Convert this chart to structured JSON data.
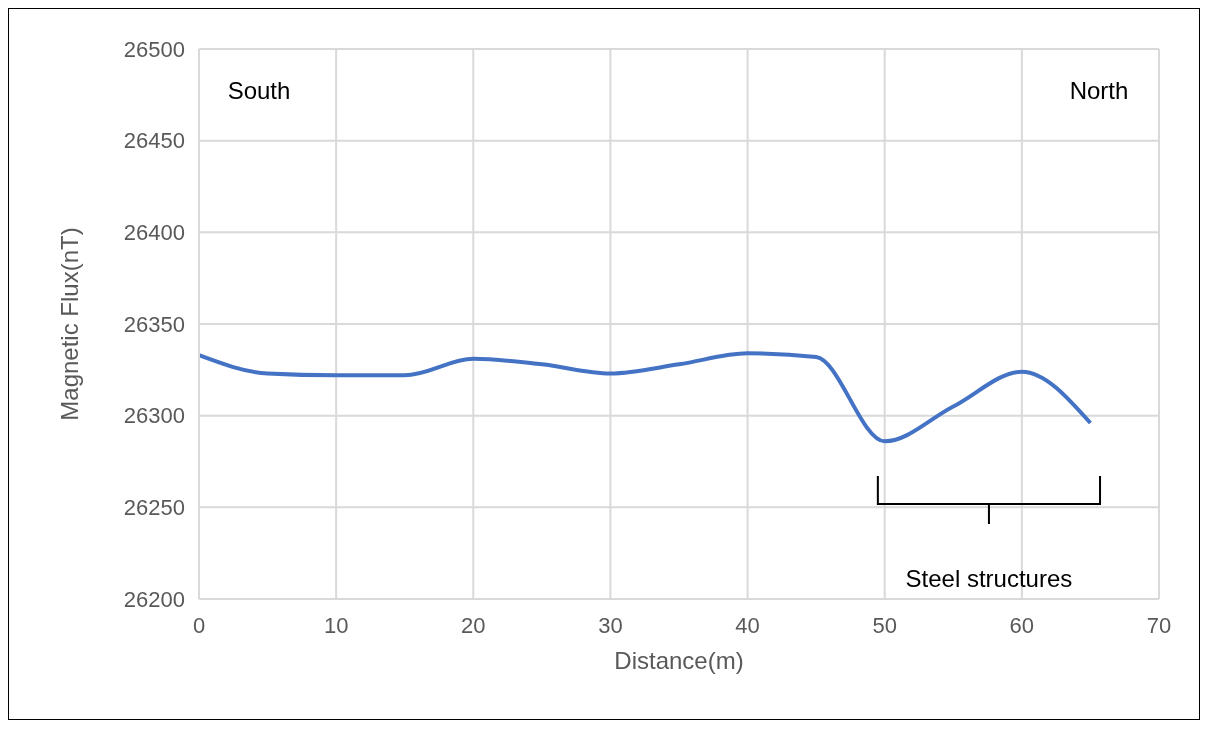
{
  "chart_data": {
    "type": "line",
    "xlabel": "Distance(m)",
    "ylabel": "Magnetic Flux(nT)",
    "x": [
      0,
      5,
      10,
      15,
      20,
      25,
      30,
      35,
      40,
      45,
      50,
      55,
      60,
      65
    ],
    "series": [
      {
        "color": "#4472c4",
        "values": [
          26333,
          26323,
          26322,
          26322,
          26331,
          26328,
          26323,
          26328,
          26334,
          26332,
          26286,
          26305,
          26324,
          26296
        ]
      }
    ],
    "xlim": [
      0,
      70
    ],
    "xticks": [
      0,
      10,
      20,
      30,
      40,
      50,
      60,
      70
    ],
    "ylim": [
      26200,
      26500
    ],
    "yticks": [
      26200,
      26250,
      26300,
      26350,
      26400,
      26450,
      26500
    ],
    "grid": true,
    "legend": false,
    "marker": "none",
    "line_style": "solid",
    "annotations": [
      "South",
      "North",
      "Steel structures"
    ]
  }
}
